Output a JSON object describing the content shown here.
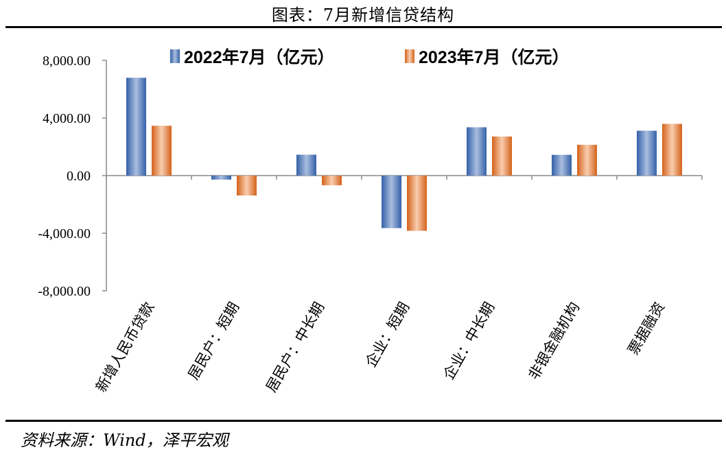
{
  "title": "图表：7月新增信贷结构",
  "source": "资料来源：Wind，泽平宏观",
  "colors": {
    "series1": "#4472C4",
    "series2": "#ED7D31"
  },
  "chart_data": {
    "type": "bar",
    "categories": [
      "新增人民币贷款",
      "居民户：短期",
      "居民户：中长期",
      "企业：短期",
      "企业：中长期",
      "非银金融机构",
      "票据融资"
    ],
    "series": [
      {
        "name": "2022年7月（亿元）",
        "values": [
          6790,
          -278,
          1451,
          -3646,
          3354,
          1441,
          3116
        ]
      },
      {
        "name": "2023年7月（亿元）",
        "values": [
          3459,
          -1381,
          -672,
          -3834,
          2712,
          2136,
          3591
        ]
      }
    ],
    "yticks": [
      "8,000.00",
      "4,000.00",
      "0.00",
      "-4,000.00",
      "-8,000.00"
    ],
    "ylim": [
      -8000,
      8000
    ],
    "legend_position": "top"
  }
}
